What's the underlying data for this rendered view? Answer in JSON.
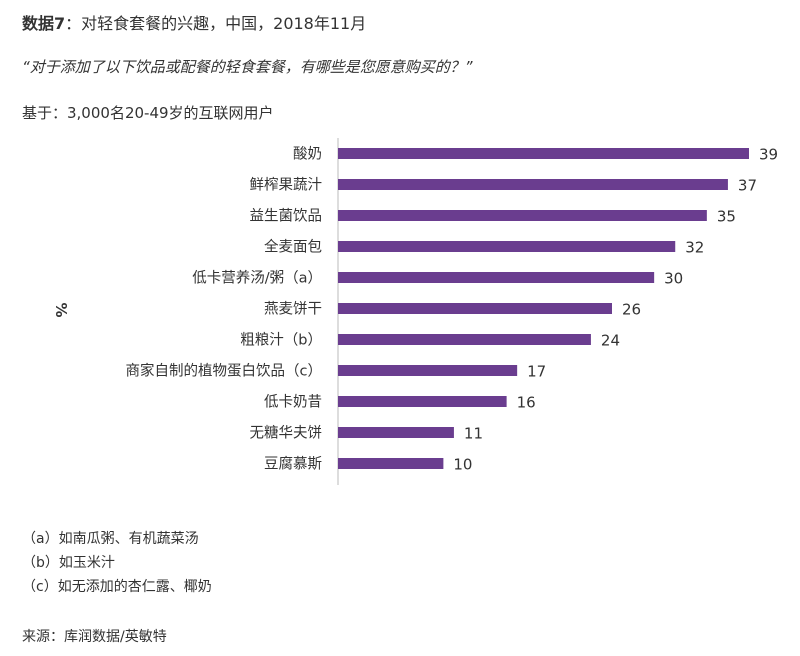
{
  "header": {
    "title_prefix": "数据7",
    "title_rest": "：对轻食套餐的兴趣，中国，2018年11月",
    "question": "“对于添加了以下饮品或配餐的轻食套餐，有哪些是您愿意购买的？”",
    "base": "基于：3,000名20-49岁的互联网用户"
  },
  "chart_data": {
    "type": "bar",
    "orientation": "horizontal",
    "categories": [
      "酸奶",
      "鲜榨果蔬汁",
      "益生菌饮品",
      "全麦面包",
      "低卡营养汤/粥（a）",
      "燕麦饼干",
      "粗粮汁（b）",
      "商家自制的植物蛋白饮品（c）",
      "低卡奶昔",
      "无糖华夫饼",
      "豆腐慕斯"
    ],
    "values": [
      39,
      37,
      35,
      32,
      30,
      26,
      24,
      17,
      16,
      11,
      10
    ],
    "ylabel": "%",
    "xlim": [
      0,
      39
    ],
    "bar_color": "#6a3d8f",
    "grid": false,
    "data_labels": true
  },
  "notes": [
    "（a）如南瓜粥、有机蔬菜汤",
    "（b）如玉米汁",
    "（c）如无添加的杏仁露、椰奶"
  ],
  "source": "来源：库润数据/英敏特"
}
